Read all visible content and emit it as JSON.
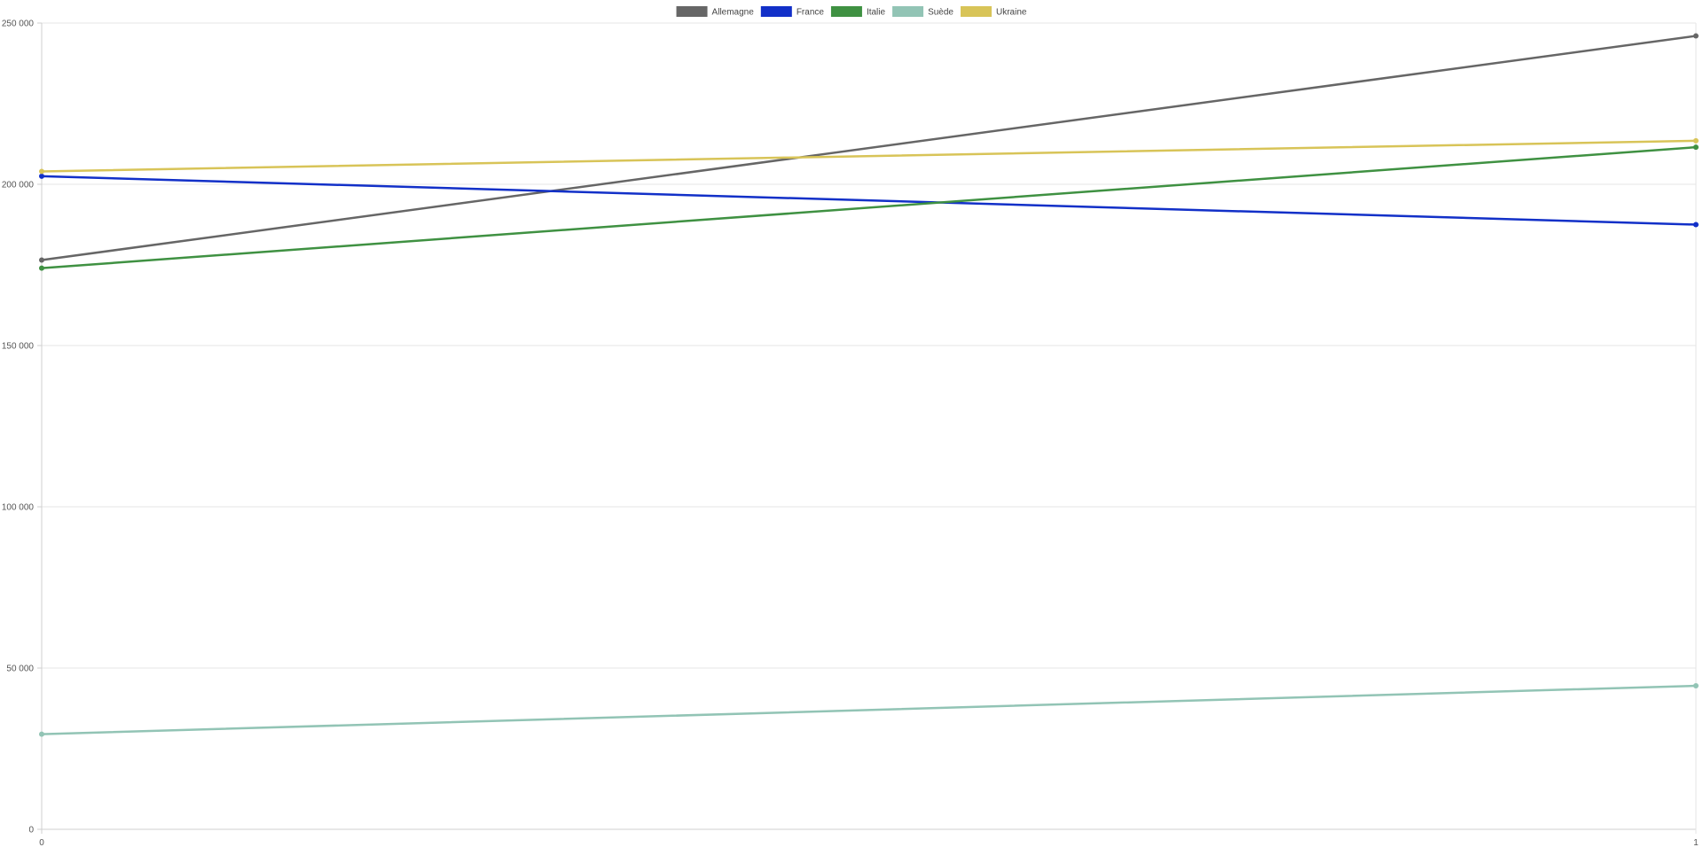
{
  "chart_data": {
    "type": "line",
    "title": "",
    "xlabel": "",
    "ylabel": "",
    "x": [
      0,
      1
    ],
    "x_tick_labels": [
      "0",
      "1"
    ],
    "y_tick_labels": [
      "0",
      "50 000",
      "100 000",
      "150 000",
      "200 000",
      "250 000"
    ],
    "ylim": [
      0,
      250000
    ],
    "grid": true,
    "legend_position": "top-center",
    "series": [
      {
        "name": "Allemagne",
        "color": "#666666",
        "values": [
          176500,
          246000
        ]
      },
      {
        "name": "France",
        "color": "#1230c8",
        "values": [
          202500,
          187500
        ]
      },
      {
        "name": "Italie",
        "color": "#3f9142",
        "values": [
          174000,
          211500
        ]
      },
      {
        "name": "Suède",
        "color": "#92c4b5",
        "values": [
          29500,
          44500
        ]
      },
      {
        "name": "Ukraine",
        "color": "#d8c458",
        "values": [
          204000,
          213500
        ]
      }
    ]
  }
}
